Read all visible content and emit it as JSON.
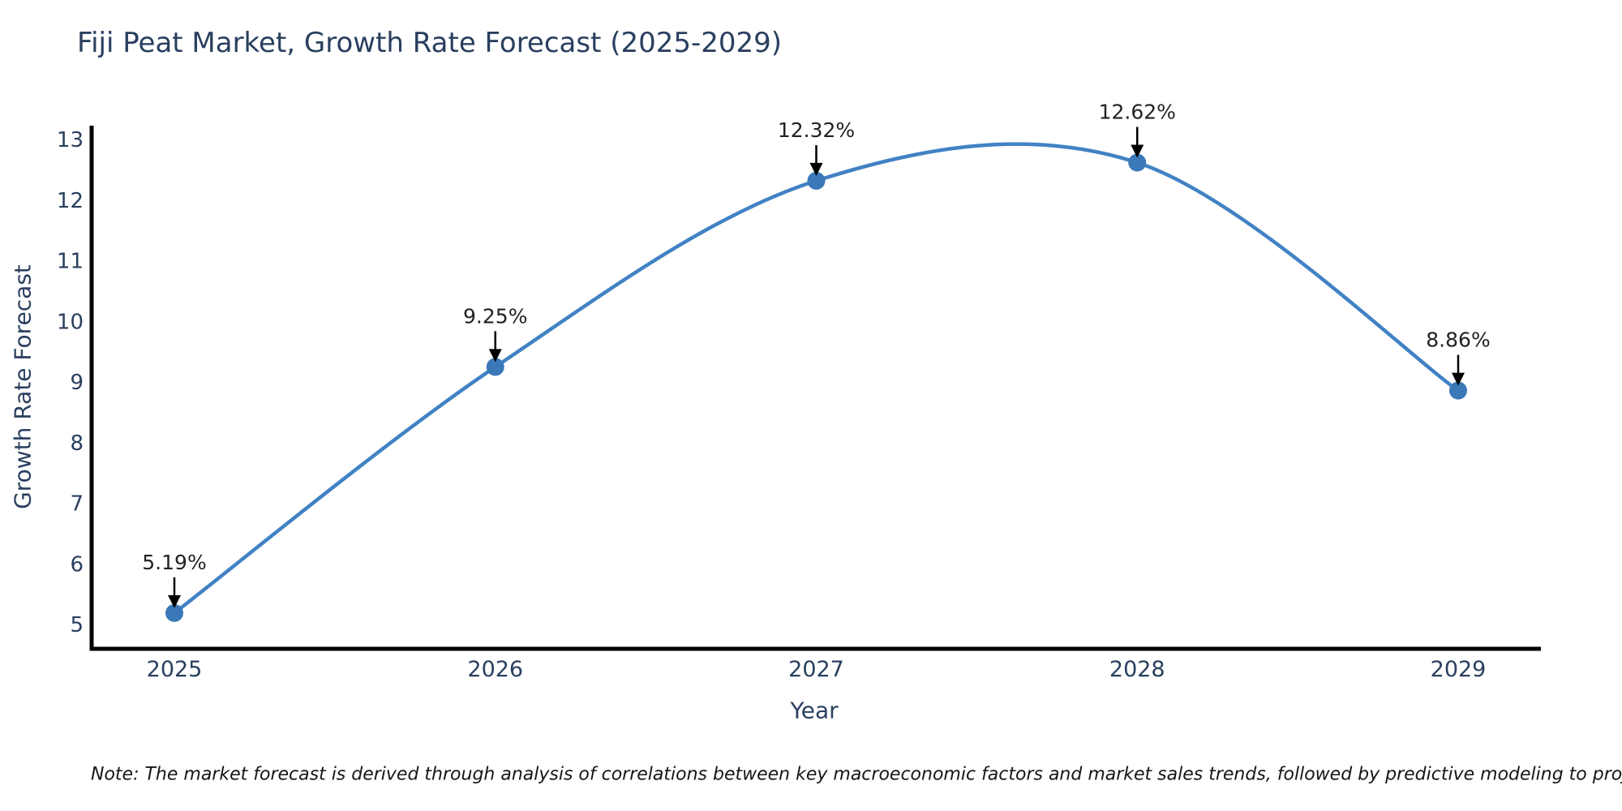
{
  "title": "Fiji Peat Market, Growth Rate Forecast (2025-2029)",
  "axes": {
    "x_label": "Year",
    "y_label": "Growth Rate Forecast"
  },
  "note": "Note: The market forecast is derived through analysis of correlations between key macroeconomic factors and market sales trends, followed by predictive modeling to project future sales",
  "colors": {
    "background": "#ffffff",
    "title_text": "#2a3f5f",
    "tick_text": "#2a3f5f",
    "axis_line": "#000000",
    "series_line": "#4182c4",
    "marker_fill": "#3a78b8",
    "annotation_text": "#222222",
    "annotation_arrow": "#000000",
    "note_text": "#161616"
  },
  "chart_data": {
    "type": "line",
    "title": "Fiji Peat Market, Growth Rate Forecast (2025-2029)",
    "xlabel": "Year",
    "ylabel": "Growth Rate Forecast",
    "categories": [
      "2025",
      "2026",
      "2027",
      "2028",
      "2029"
    ],
    "series": [
      {
        "name": "Growth Rate Forecast",
        "values": [
          5.19,
          9.25,
          12.32,
          12.62,
          8.86
        ],
        "point_labels": [
          "5.19%",
          "9.25%",
          "12.32%",
          "12.62%",
          "8.86%"
        ]
      }
    ],
    "line_shape": "spline",
    "markers": true,
    "grid": false,
    "legend": false,
    "yticks": [
      5,
      6,
      7,
      8,
      9,
      10,
      11,
      12,
      13
    ],
    "ylim": [
      4.6,
      13.2
    ],
    "annotations": [
      {
        "x": "2025",
        "y": 5.19,
        "text": "5.19%"
      },
      {
        "x": "2026",
        "y": 9.25,
        "text": "9.25%"
      },
      {
        "x": "2027",
        "y": 12.32,
        "text": "12.32%"
      },
      {
        "x": "2028",
        "y": 12.62,
        "text": "12.62%"
      },
      {
        "x": "2029",
        "y": 8.86,
        "text": "8.86%"
      }
    ]
  }
}
